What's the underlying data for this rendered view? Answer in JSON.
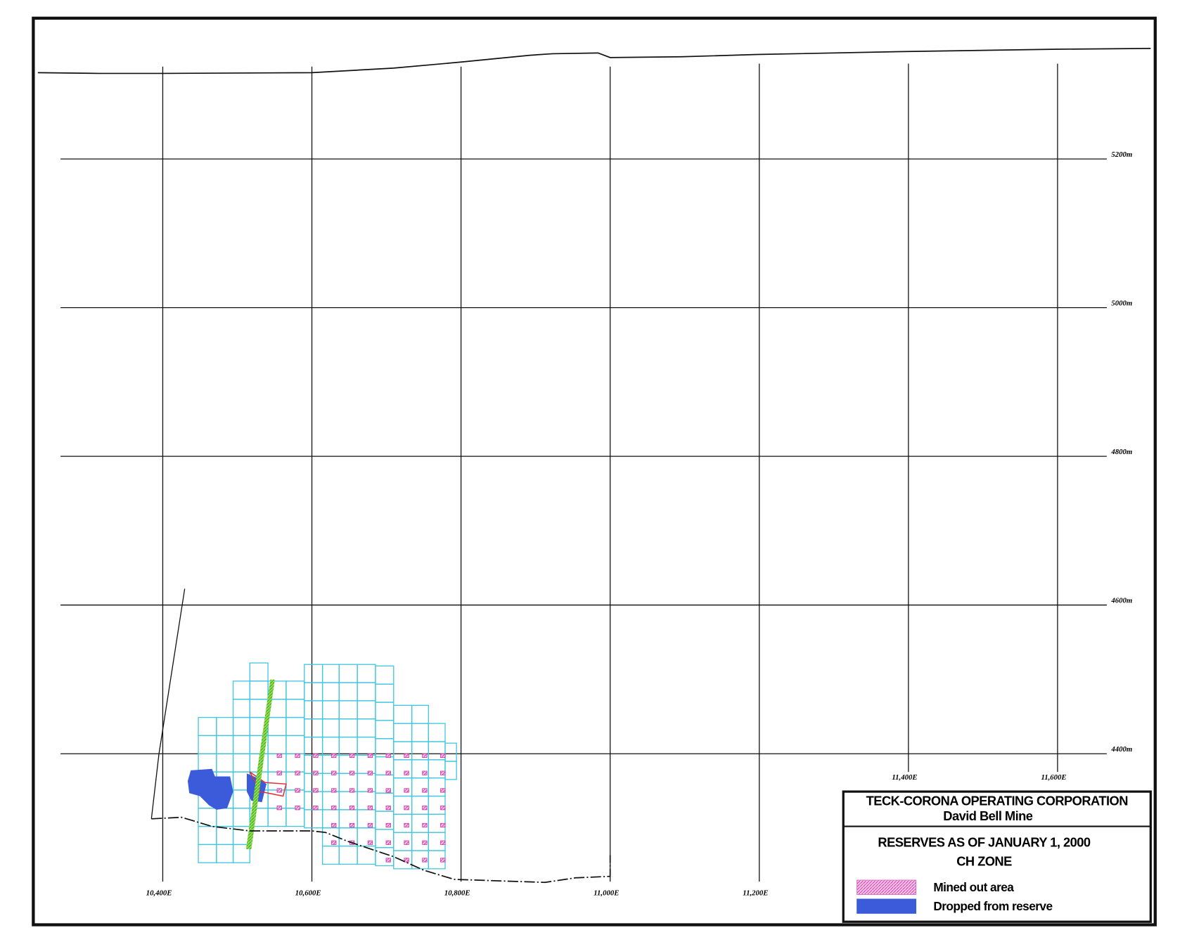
{
  "x_labels": [
    "10,400E",
    "10,600E",
    "10,800E",
    "11,000E",
    "11,200E",
    "11,400E",
    "11,600E"
  ],
  "y_labels": [
    "5200m",
    "5000m",
    "4800m",
    "4600m",
    "4400m"
  ],
  "title_block": {
    "company": "TECK-CORONA OPERATING CORPORATION",
    "mine": "David Bell Mine",
    "title": "RESERVES AS OF JANUARY 1, 2000",
    "zone": "CH ZONE"
  },
  "legend": [
    {
      "label": "Mined out area",
      "color": "#e060c0"
    },
    {
      "label": "Dropped from reserve",
      "color": "#3b5bdb"
    }
  ]
}
